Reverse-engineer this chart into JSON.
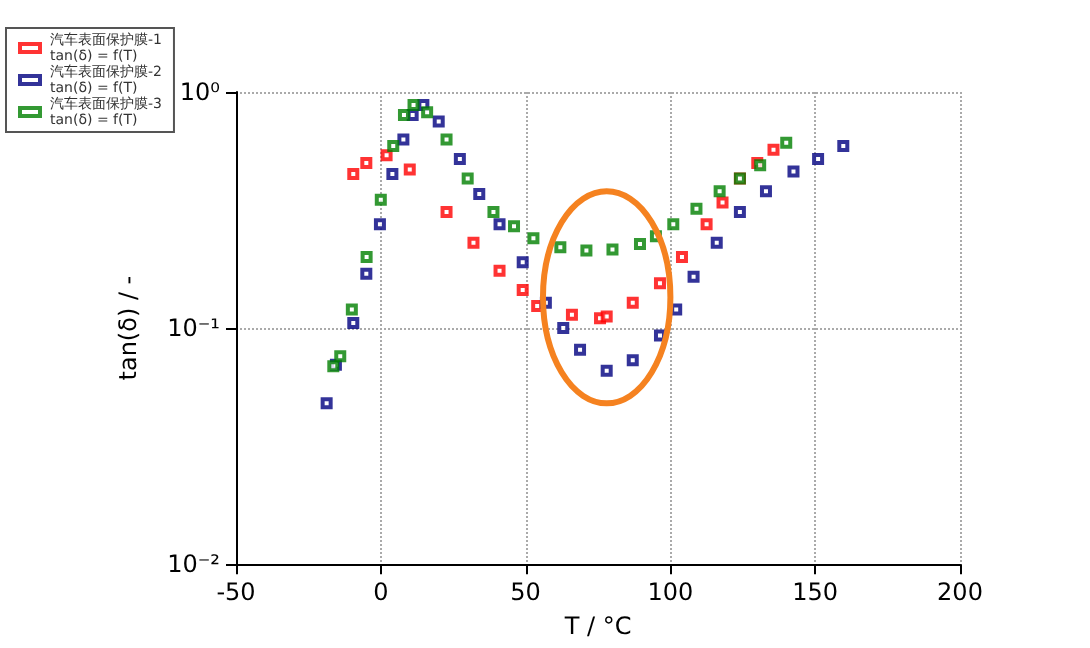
{
  "chart_data": {
    "type": "scatter",
    "xlabel": "T / °C",
    "ylabel": "tan(δ) / -",
    "log": "y",
    "grid": true,
    "legend": "top left",
    "marker": "square",
    "xlim": [
      -50,
      200
    ],
    "xticks": [
      -50,
      0,
      50,
      100,
      150,
      200
    ],
    "ylim": [
      0.01,
      1
    ],
    "yticks": [
      {
        "value": 0.01,
        "label": "10⁻²"
      },
      {
        "value": 0.1,
        "label": "10⁻¹"
      },
      {
        "value": 1,
        "label": "10⁰"
      }
    ],
    "series": [
      {
        "name": "汽车表面保护膜-1\ntan(δ) = f(T)",
        "color": "#ff0000",
        "x": [
          -9.5,
          -5,
          2,
          10,
          22.7,
          32,
          41,
          49,
          54,
          66,
          75.7,
          78,
          87,
          96.4,
          104,
          112.5,
          118,
          124,
          130,
          135.6
        ],
        "values": [
          0.45,
          0.5,
          0.54,
          0.47,
          0.31,
          0.23,
          0.175,
          0.145,
          0.124,
          0.114,
          0.11,
          0.112,
          0.128,
          0.155,
          0.2,
          0.275,
          0.34,
          0.43,
          0.5,
          0.57
        ]
      },
      {
        "name": "汽车表面保护膜-2\ntan(δ) = f(T)",
        "color": "#000080",
        "x": [
          -18.7,
          -15.5,
          -9.5,
          -5,
          -0.3,
          4,
          7.8,
          11,
          14.7,
          20,
          27.3,
          34,
          41,
          49,
          57,
          63,
          68.8,
          78,
          87,
          96.4,
          102,
          108,
          116,
          124,
          133,
          142.5,
          151,
          159.7
        ],
        "values": [
          0.048,
          0.07,
          0.105,
          0.17,
          0.275,
          0.45,
          0.63,
          0.8,
          0.88,
          0.75,
          0.52,
          0.37,
          0.275,
          0.19,
          0.128,
          0.1,
          0.081,
          0.066,
          0.073,
          0.093,
          0.12,
          0.165,
          0.23,
          0.31,
          0.38,
          0.46,
          0.52,
          0.59
        ]
      },
      {
        "name": "汽车表面保护膜-3\ntan(δ) = f(T)",
        "color": "#008000",
        "x": [
          -16.4,
          -14,
          -10,
          -4.9,
          0,
          4.3,
          8,
          11.3,
          16,
          22.7,
          30,
          38.9,
          46,
          52.7,
          62,
          71,
          80,
          89.5,
          95,
          101,
          109,
          117,
          124,
          131,
          140
        ],
        "values": [
          0.069,
          0.076,
          0.12,
          0.2,
          0.35,
          0.59,
          0.8,
          0.88,
          0.82,
          0.63,
          0.43,
          0.31,
          0.27,
          0.24,
          0.22,
          0.213,
          0.215,
          0.227,
          0.245,
          0.275,
          0.32,
          0.38,
          0.43,
          0.49,
          0.61
        ]
      }
    ]
  }
}
